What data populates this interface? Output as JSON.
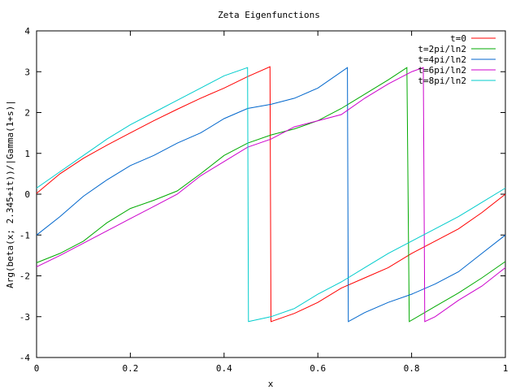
{
  "chart_data": {
    "type": "line",
    "title": "Zeta Eigenfunctions",
    "xlabel": "x",
    "ylabel": "Arg(beta(x; 2.345+it))/|Gamma(1+s)|",
    "xlim": [
      0,
      1
    ],
    "ylim": [
      -4,
      4
    ],
    "xticks": [
      "0",
      "0.2",
      "0.4",
      "0.6",
      "0.8",
      "1"
    ],
    "yticks": [
      "-4",
      "-3",
      "-2",
      "-1",
      "0",
      "1",
      "2",
      "3",
      "4"
    ],
    "grid": false,
    "legend_position": "top-right",
    "series": [
      {
        "name": "t=0",
        "color": "#ff0000",
        "points": [
          [
            0,
            0.02
          ],
          [
            0.05,
            0.5
          ],
          [
            0.1,
            0.88
          ],
          [
            0.15,
            1.2
          ],
          [
            0.2,
            1.5
          ],
          [
            0.25,
            1.8
          ],
          [
            0.3,
            2.08
          ],
          [
            0.35,
            2.35
          ],
          [
            0.4,
            2.6
          ],
          [
            0.45,
            2.88
          ],
          [
            0.498,
            3.12
          ],
          [
            0.5,
            -3.12
          ],
          [
            0.55,
            -2.92
          ],
          [
            0.6,
            -2.65
          ],
          [
            0.65,
            -2.3
          ],
          [
            0.7,
            -2.05
          ],
          [
            0.75,
            -1.8
          ],
          [
            0.8,
            -1.45
          ],
          [
            0.85,
            -1.15
          ],
          [
            0.9,
            -0.85
          ],
          [
            0.95,
            -0.45
          ],
          [
            1.0,
            0.0
          ]
        ]
      },
      {
        "name": "t=2pi/ln2",
        "color": "#00aa00",
        "points": [
          [
            0,
            -1.68
          ],
          [
            0.05,
            -1.45
          ],
          [
            0.1,
            -1.15
          ],
          [
            0.15,
            -0.7
          ],
          [
            0.2,
            -0.35
          ],
          [
            0.25,
            -0.15
          ],
          [
            0.3,
            0.08
          ],
          [
            0.35,
            0.5
          ],
          [
            0.4,
            0.95
          ],
          [
            0.45,
            1.25
          ],
          [
            0.5,
            1.45
          ],
          [
            0.55,
            1.6
          ],
          [
            0.6,
            1.8
          ],
          [
            0.65,
            2.1
          ],
          [
            0.7,
            2.45
          ],
          [
            0.75,
            2.8
          ],
          [
            0.79,
            3.1
          ],
          [
            0.795,
            -3.12
          ],
          [
            0.85,
            -2.75
          ],
          [
            0.9,
            -2.42
          ],
          [
            0.95,
            -2.05
          ],
          [
            1.0,
            -1.65
          ]
        ]
      },
      {
        "name": "t=4pi/ln2",
        "color": "#0066cc",
        "points": [
          [
            0,
            -1.0
          ],
          [
            0.05,
            -0.55
          ],
          [
            0.1,
            -0.05
          ],
          [
            0.15,
            0.35
          ],
          [
            0.2,
            0.7
          ],
          [
            0.25,
            0.95
          ],
          [
            0.3,
            1.25
          ],
          [
            0.35,
            1.5
          ],
          [
            0.4,
            1.85
          ],
          [
            0.45,
            2.1
          ],
          [
            0.5,
            2.2
          ],
          [
            0.55,
            2.35
          ],
          [
            0.6,
            2.6
          ],
          [
            0.663,
            3.1
          ],
          [
            0.665,
            -3.12
          ],
          [
            0.7,
            -2.9
          ],
          [
            0.75,
            -2.65
          ],
          [
            0.8,
            -2.45
          ],
          [
            0.85,
            -2.2
          ],
          [
            0.9,
            -1.9
          ],
          [
            0.95,
            -1.45
          ],
          [
            1.0,
            -1.0
          ]
        ]
      },
      {
        "name": "t=6pi/ln2",
        "color": "#cc00cc",
        "points": [
          [
            0,
            -1.78
          ],
          [
            0.05,
            -1.5
          ],
          [
            0.1,
            -1.2
          ],
          [
            0.15,
            -0.9
          ],
          [
            0.2,
            -0.6
          ],
          [
            0.25,
            -0.3
          ],
          [
            0.3,
            0.0
          ],
          [
            0.35,
            0.45
          ],
          [
            0.4,
            0.8
          ],
          [
            0.45,
            1.15
          ],
          [
            0.5,
            1.35
          ],
          [
            0.55,
            1.65
          ],
          [
            0.6,
            1.8
          ],
          [
            0.65,
            1.95
          ],
          [
            0.7,
            2.35
          ],
          [
            0.75,
            2.7
          ],
          [
            0.8,
            3.0
          ],
          [
            0.825,
            3.1
          ],
          [
            0.828,
            -3.12
          ],
          [
            0.85,
            -3.0
          ],
          [
            0.9,
            -2.6
          ],
          [
            0.95,
            -2.25
          ],
          [
            1.0,
            -1.8
          ]
        ]
      },
      {
        "name": "t=8pi/ln2",
        "color": "#00cccc",
        "points": [
          [
            0,
            0.15
          ],
          [
            0.05,
            0.55
          ],
          [
            0.1,
            0.95
          ],
          [
            0.15,
            1.35
          ],
          [
            0.2,
            1.7
          ],
          [
            0.25,
            2.0
          ],
          [
            0.3,
            2.3
          ],
          [
            0.35,
            2.6
          ],
          [
            0.4,
            2.9
          ],
          [
            0.45,
            3.1
          ],
          [
            0.452,
            -3.12
          ],
          [
            0.5,
            -3.0
          ],
          [
            0.55,
            -2.8
          ],
          [
            0.6,
            -2.45
          ],
          [
            0.65,
            -2.15
          ],
          [
            0.7,
            -1.8
          ],
          [
            0.75,
            -1.45
          ],
          [
            0.8,
            -1.15
          ],
          [
            0.85,
            -0.85
          ],
          [
            0.9,
            -0.55
          ],
          [
            0.95,
            -0.2
          ],
          [
            1.0,
            0.15
          ]
        ]
      }
    ]
  }
}
